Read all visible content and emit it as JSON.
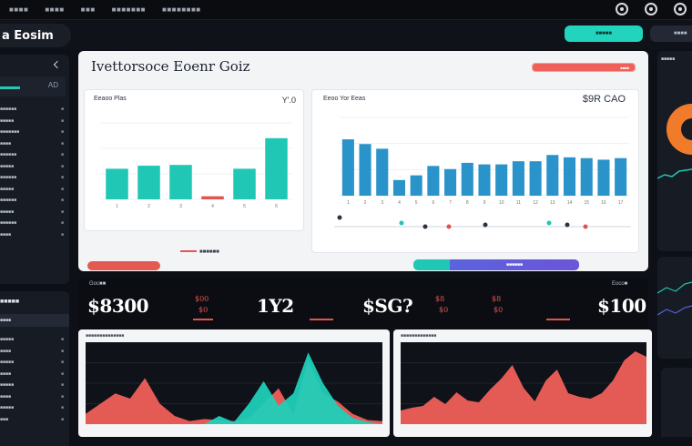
{
  "topbar": {
    "menu": [
      "■■■■",
      "■■■■",
      "■■■",
      "■■■■■■■",
      "■■■■■■■■"
    ]
  },
  "brand": {
    "title": "a Eosim"
  },
  "actions": {
    "primary_label": "■■■■■",
    "secondary_label": "■■■■"
  },
  "left_panel": {
    "stat_value": "AD",
    "items": [
      {
        "t": "■■■■■■",
        "d": "■"
      },
      {
        "t": "■■■■■",
        "d": "■"
      },
      {
        "t": "■■■■■■■",
        "d": "■"
      },
      {
        "t": "■■■■",
        "d": "■"
      },
      {
        "t": "■■■■■■",
        "d": "■"
      },
      {
        "t": "■■■■■",
        "d": "■"
      },
      {
        "t": "■■■■■■",
        "d": "■"
      },
      {
        "t": "■■■■■",
        "d": "■"
      },
      {
        "t": "■■■■■■",
        "d": "■"
      },
      {
        "t": "■■■■■",
        "d": "■"
      },
      {
        "t": "■■■■■■",
        "d": "■"
      },
      {
        "t": "■■■■",
        "d": "■"
      }
    ]
  },
  "left_panel2": {
    "title": "■■■■■",
    "band": "■■■■",
    "items": [
      {
        "t": "■■■■■",
        "d": "■"
      },
      {
        "t": "■■■■",
        "d": "■"
      },
      {
        "t": "■■■■■",
        "d": "■"
      },
      {
        "t": "■■■■",
        "d": "■"
      },
      {
        "t": "■■■■■",
        "d": "■"
      },
      {
        "t": "■■■■",
        "d": "■"
      },
      {
        "t": "■■■■■",
        "d": "■"
      },
      {
        "t": "■■■",
        "d": "■"
      }
    ]
  },
  "main": {
    "title": "Ivettorsoce Eoenr Goiz",
    "pill_label": "■■■■",
    "footer_text": "■■■■■■",
    "chart_a_title": "Eeaoo Plas",
    "chart_a_value": "Y'.0",
    "chart_b_title": "Eeoo Yor Eeas",
    "chart_b_value": "$9R CAO"
  },
  "divider": {
    "label": "■■■■■■"
  },
  "kpis": [
    {
      "label": "Goc■■",
      "big": "$8300",
      "sub1": "$00",
      "sub2": "$0"
    },
    {
      "label": "",
      "big": "1Y2",
      "sub1": "",
      "sub2": ""
    },
    {
      "label": "",
      "big": "$SG?",
      "sub1": "$8",
      "sub2": "$0"
    },
    {
      "label": "",
      "big": "",
      "sub1": "$8",
      "sub2": "$0"
    },
    {
      "label": "Eoco■",
      "big": "$100",
      "sub1": "",
      "sub2": ""
    }
  ],
  "bottom": {
    "a_title": "■■■■■■■■■■■■■■",
    "b_title": "■■■■■■■■■■■■■"
  },
  "right_col": {
    "title": "■■■■■"
  },
  "chart_data": [
    {
      "type": "bar",
      "title": "Eeaoo Plas",
      "categories": [
        "1",
        "2",
        "3",
        "4",
        "5",
        "6"
      ],
      "values": [
        40,
        44,
        45,
        4,
        40,
        80
      ],
      "ylim": [
        0,
        100
      ],
      "colors": [
        "#1fc7b4",
        "#e0534f"
      ]
    },
    {
      "type": "bar",
      "title": "Eeoo Yor Eeas",
      "categories": [
        "1",
        "2",
        "3",
        "4",
        "5",
        "6",
        "7",
        "8",
        "9",
        "10",
        "11",
        "12",
        "13",
        "14",
        "15",
        "16",
        "17"
      ],
      "values": [
        72,
        66,
        60,
        20,
        26,
        38,
        34,
        42,
        40,
        40,
        44,
        44,
        52,
        49,
        48,
        46,
        48
      ],
      "ylim": [
        0,
        100
      ],
      "colors": [
        "#2a93c9"
      ]
    },
    {
      "type": "area",
      "title": "",
      "x": [
        0,
        1,
        2,
        3,
        4,
        5,
        6,
        7,
        8,
        9,
        10,
        11,
        12,
        13,
        14,
        15,
        16,
        17,
        18,
        19,
        20
      ],
      "series": [
        {
          "values": [
            10,
            20,
            30,
            25,
            45,
            20,
            8,
            3,
            5,
            4,
            3,
            6,
            20,
            35,
            10,
            62,
            30,
            22,
            10,
            4,
            3
          ],
          "color": "#f0605a"
        },
        {
          "values": [
            0,
            0,
            0,
            0,
            0,
            0,
            0,
            0,
            0,
            8,
            2,
            20,
            42,
            18,
            30,
            70,
            40,
            18,
            6,
            2,
            0
          ],
          "color": "#1fd0b8"
        }
      ],
      "ylim": [
        0,
        80
      ]
    },
    {
      "type": "area",
      "title": "",
      "x": [
        0,
        1,
        2,
        3,
        4,
        5,
        6,
        7,
        8,
        9,
        10,
        11,
        12,
        13,
        14,
        15,
        16,
        17,
        18,
        19,
        20,
        21,
        22
      ],
      "series": [
        {
          "values": [
            15,
            18,
            20,
            30,
            22,
            35,
            26,
            24,
            38,
            50,
            65,
            40,
            25,
            48,
            60,
            34,
            30,
            28,
            34,
            48,
            70,
            80,
            74
          ],
          "color": "#f0605a"
        }
      ],
      "ylim": [
        0,
        90
      ]
    }
  ]
}
